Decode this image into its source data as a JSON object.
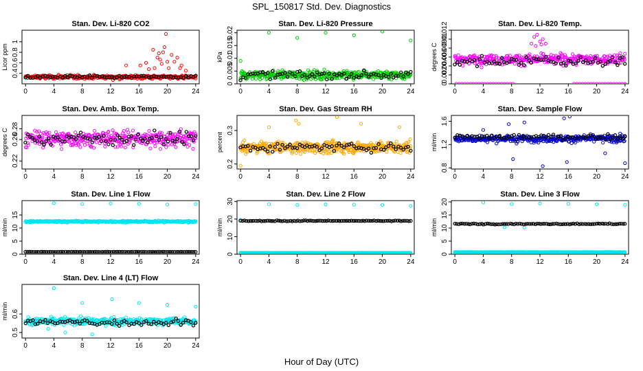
{
  "figure": {
    "title": "SPL_150817  Std. Dev. Diagnostics",
    "xlabel": "Hour of Day (UTC)"
  },
  "chart_data": [
    {
      "type": "scatter",
      "title": "Stan. Dev. Li-820 CO2",
      "ylabel": "Licor ppm",
      "xlim": [
        -0.5,
        24.5
      ],
      "xticks": [
        0,
        4,
        8,
        12,
        16,
        20,
        24
      ],
      "ylim": [
        0.2,
        1.22
      ],
      "yticks": [
        0.4,
        0.6,
        0.8,
        1.0
      ],
      "series": [
        {
          "color": "#ff0000",
          "base": 0.33,
          "spread": 0.04,
          "n": 320,
          "x": [
            16.2,
            17.0,
            18.0,
            18.6,
            19.0,
            19.4,
            19.8,
            20.2,
            20.6,
            21.0,
            21.4,
            22.0,
            19.6,
            18.2,
            17.4,
            14.2,
            22.6,
            20.0,
            19.2,
            18.8,
            21.8
          ],
          "y": [
            0.55,
            0.6,
            0.85,
            0.7,
            0.66,
            0.8,
            1.15,
            0.5,
            0.75,
            0.62,
            0.7,
            0.55,
            0.9,
            0.5,
            0.48,
            0.55,
            0.45,
            0.62,
            0.58,
            0.78,
            0.5
          ]
        },
        {
          "color": "#000000",
          "base": 0.33,
          "spread": 0.03,
          "n": 70,
          "x": [],
          "y": []
        }
      ]
    },
    {
      "type": "scatter",
      "title": "Stan. Dev. Li-820 Pressure",
      "ylabel": "kPa",
      "xlim": [
        -0.5,
        24.5
      ],
      "xticks": [
        0,
        4,
        8,
        12,
        16,
        20,
        24
      ],
      "ylim": [
        0,
        0.021
      ],
      "yticks": [
        0.0,
        0.005,
        0.01,
        0.015,
        0.02
      ],
      "series": [
        {
          "color": "#00cc00",
          "base": 0.0035,
          "spread": 0.0017,
          "n": 420,
          "x": [
            4.0,
            8.0,
            12.0,
            16.0,
            20.0,
            24.0,
            0.0
          ],
          "y": [
            0.02,
            0.018,
            0.02,
            0.019,
            0.0205,
            0.017,
            0.009
          ]
        },
        {
          "color": "#000000",
          "base": 0.0035,
          "spread": 0.0017,
          "n": 70,
          "x": [],
          "y": []
        }
      ]
    },
    {
      "type": "scatter",
      "title": "Stan. Dev. Li-820 Temp.",
      "ylabel": "degrees C",
      "xlim": [
        -0.5,
        24.5
      ],
      "xticks": [
        0,
        4,
        8,
        12,
        16,
        20,
        24
      ],
      "ylim": [
        0,
        0.012
      ],
      "yticks": [
        0.0,
        0.002,
        0.004,
        0.006,
        0.008,
        0.01,
        0.012
      ],
      "series": [
        {
          "color": "#ff00ff",
          "base": 0.0055,
          "spread": 0.0012,
          "n": 360,
          "x": [
            0.2,
            0.6,
            1.0,
            1.4,
            1.8,
            2.2,
            2.6,
            3.0,
            3.4,
            3.8,
            4.2,
            4.6,
            5.0,
            5.4,
            5.8,
            6.2,
            6.6,
            7.0,
            7.4,
            7.8,
            8.2,
            16.8,
            17.2,
            17.6,
            18.0,
            18.4,
            18.8,
            19.2,
            19.6,
            20.0,
            20.4,
            20.8,
            21.2,
            21.6,
            22.0,
            22.4,
            22.8,
            23.2,
            23.6,
            24.0,
            10.8,
            11.2,
            11.6,
            12.0,
            12.4,
            12.8,
            11.4,
            12.2
          ],
          "y": [
            0,
            0,
            0,
            0,
            0,
            0,
            0,
            0,
            0,
            0,
            0,
            0,
            0,
            0,
            0,
            0,
            0,
            0,
            0,
            0,
            0,
            0,
            0,
            0,
            0,
            0,
            0,
            0,
            0,
            0,
            0,
            0,
            0,
            0,
            0,
            0,
            0,
            0,
            0,
            0,
            0.009,
            0.0105,
            0.011,
            0.0095,
            0.01,
            0.009,
            0.0085,
            0.0088
          ]
        },
        {
          "color": "#000000",
          "base": 0.005,
          "spread": 0.0012,
          "n": 70,
          "x": [],
          "y": []
        }
      ]
    },
    {
      "type": "scatter",
      "title": "Stan. Dev. Amb. Box Temp.",
      "ylabel": "degrees C",
      "xlim": [
        -0.5,
        24.5
      ],
      "xticks": [
        0,
        4,
        8,
        12,
        16,
        20,
        24
      ],
      "ylim": [
        0.205,
        0.305
      ],
      "yticks": [
        0.22,
        0.26,
        0.28
      ],
      "series": [
        {
          "color": "#ff00ff",
          "base": 0.262,
          "spread": 0.016,
          "n": 380,
          "x": [],
          "y": []
        },
        {
          "color": "#000000",
          "base": 0.262,
          "spread": 0.012,
          "n": 75,
          "x": [],
          "y": []
        }
      ]
    },
    {
      "type": "scatter",
      "title": "Stan. Dev. Gas Stream RH",
      "ylabel": "percent",
      "xlim": [
        -0.5,
        24.5
      ],
      "xticks": [
        0,
        4,
        8,
        12,
        16,
        20,
        24
      ],
      "ylim": [
        0.185,
        0.345
      ],
      "yticks": [
        0.2,
        0.3
      ],
      "series": [
        {
          "color": "#ffa500",
          "base": 0.25,
          "spread": 0.018,
          "n": 420,
          "x": [
            7.8,
            8.2,
            13.6,
            17.0,
            4.0,
            0.0,
            22.4
          ],
          "y": [
            0.33,
            0.32,
            0.34,
            0.32,
            0.31,
            0.195,
            0.31
          ]
        },
        {
          "color": "#000000",
          "base": 0.25,
          "spread": 0.013,
          "n": 70,
          "x": [],
          "y": []
        }
      ]
    },
    {
      "type": "scatter",
      "title": "Stan. Dev. Sample Flow",
      "ylabel": "ml/min",
      "xlim": [
        -0.5,
        24.5
      ],
      "xticks": [
        0,
        4,
        8,
        12,
        16,
        20,
        24
      ],
      "ylim": [
        0.78,
        1.7
      ],
      "yticks": [
        0.8,
        1.2,
        1.6
      ],
      "series": [
        {
          "color": "#0000cc",
          "base": 1.3,
          "spread": 0.06,
          "n": 380,
          "x": [
            8.2,
            12.4,
            15.4,
            16.2,
            24.0,
            7.6,
            21.2,
            15.8,
            9.8,
            4.0
          ],
          "y": [
            0.95,
            0.83,
            1.65,
            1.68,
            0.88,
            1.55,
            1.05,
            0.9,
            1.58,
            1.45
          ]
        },
        {
          "color": "#000000",
          "base": 1.33,
          "spread": 0.05,
          "n": 70,
          "x": [],
          "y": []
        }
      ]
    },
    {
      "type": "scatter",
      "title": "Stan. Dev. Line 1 Flow",
      "ylabel": "ml/min",
      "xlim": [
        -0.5,
        24.5
      ],
      "xticks": [
        0,
        4,
        8,
        12,
        16,
        20,
        24
      ],
      "ylim": [
        0,
        20.5
      ],
      "yticks": [
        0,
        5,
        10,
        15
      ],
      "series": [
        {
          "color": "#00e5ee",
          "base": 12.5,
          "spread": 0.35,
          "n": 420,
          "x": [
            4.0,
            8.0,
            12.0,
            16.0,
            20.0,
            24.0
          ],
          "y": [
            19.5,
            19.2,
            19.4,
            19.3,
            19.0,
            19.2
          ]
        },
        {
          "color": "#000000",
          "base": 0.9,
          "spread": 0.05,
          "n": 90,
          "x": [],
          "y": []
        }
      ]
    },
    {
      "type": "scatter",
      "title": "Stan. Dev. Line 2 Flow",
      "ylabel": "ml/min",
      "xlim": [
        -0.5,
        24.5
      ],
      "xticks": [
        0,
        4,
        8,
        12,
        16,
        20,
        24
      ],
      "ylim": [
        0,
        30.5
      ],
      "yticks": [
        0,
        10,
        20,
        30
      ],
      "series": [
        {
          "color": "#00e5ee",
          "base": 0.8,
          "spread": 0.05,
          "n": 300,
          "x": [
            0.0,
            4.0,
            8.0,
            12.0,
            16.0,
            20.0,
            24.0
          ],
          "y": [
            19.5,
            28.5,
            28.0,
            28.3,
            28.2,
            28.0,
            27.5
          ]
        },
        {
          "color": "#000000",
          "base": 19.0,
          "spread": 0.25,
          "n": 90,
          "x": [],
          "y": []
        }
      ]
    },
    {
      "type": "scatter",
      "title": "Stan. Dev. Line 3 Flow",
      "ylabel": "ml/min",
      "xlim": [
        -0.5,
        24.5
      ],
      "xticks": [
        0,
        4,
        8,
        12,
        16,
        20,
        24
      ],
      "ylim": [
        0,
        20.5
      ],
      "yticks": [
        0,
        5,
        10,
        15,
        20
      ],
      "series": [
        {
          "color": "#00e5ee",
          "base": 0.8,
          "spread": 0.05,
          "n": 300,
          "x": [
            4.0,
            8.0,
            12.0,
            16.0,
            20.0,
            24.0,
            7.0,
            9.8
          ],
          "y": [
            19.8,
            19.2,
            19.4,
            19.3,
            19.1,
            18.9,
            10.3,
            10.2
          ]
        },
        {
          "color": "#000000",
          "base": 11.6,
          "spread": 0.2,
          "n": 90,
          "x": [],
          "y": []
        }
      ]
    },
    {
      "type": "scatter",
      "title": "Stan. Dev. Line 4 (LT) Flow",
      "ylabel": "ml/min",
      "xlim": [
        -0.5,
        24.5
      ],
      "xticks": [
        0,
        4,
        8,
        12,
        16,
        20,
        24
      ],
      "ylim": [
        0.47,
        0.76
      ],
      "yticks": [
        0.5,
        0.6
      ],
      "series": [
        {
          "color": "#00e5ee",
          "base": 0.56,
          "spread": 0.02,
          "n": 380,
          "x": [
            4.0,
            12.2,
            20.0,
            8.0,
            16.0,
            24.0,
            5.6,
            9.4,
            3.2
          ],
          "y": [
            0.74,
            0.68,
            0.65,
            0.66,
            0.66,
            0.64,
            0.5,
            0.49,
            0.52
          ]
        },
        {
          "color": "#000000",
          "base": 0.555,
          "spread": 0.02,
          "n": 70,
          "x": [],
          "y": []
        }
      ]
    }
  ]
}
